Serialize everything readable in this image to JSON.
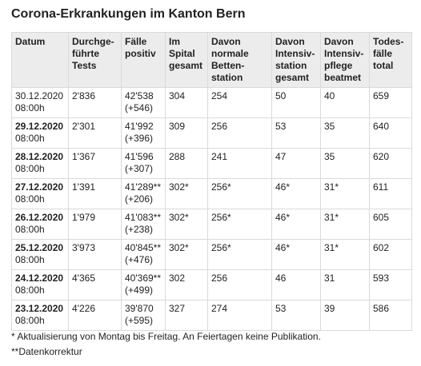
{
  "title": "Corona-Erkrankungen im Kanton Bern",
  "table": {
    "headers": [
      "Datum",
      "Durchge-\nführte\nTests",
      "Fälle\npositiv",
      "Im\nSpital\ngesamt",
      "Davon\nnormale\nBetten-\nstation",
      "Davon\nIntensiv-\nstation\ngesamt",
      "Davon\nIntensiv-\npflege\nbeatmet",
      "Todes-\nfälle\ntotal"
    ],
    "rows": [
      {
        "date": "30.12.2020",
        "time": "08:00h",
        "date_bold": false,
        "tests": "2'836",
        "positiv": "42'538\n(+546)",
        "spital": "304",
        "normal": "254",
        "intensiv": "50",
        "beatmet": "40",
        "todesfaelle": "659"
      },
      {
        "date": "29.12.2020",
        "time": "08:00h",
        "date_bold": true,
        "tests": "2'301",
        "positiv": "41'992\n(+396)",
        "spital": "309",
        "normal": "256",
        "intensiv": "53",
        "beatmet": "35",
        "todesfaelle": "640"
      },
      {
        "date": "28.12.2020",
        "time": "08:00h",
        "date_bold": true,
        "tests": "1'367",
        "positiv": "41'596\n(+307)",
        "spital": "288",
        "normal": "241",
        "intensiv": "47",
        "beatmet": "35",
        "todesfaelle": "620"
      },
      {
        "date": "27.12.2020",
        "time": "08:00h",
        "date_bold": true,
        "tests": "1'391",
        "positiv": "41'289**\n(+206)",
        "spital": "302*",
        "normal": "256*",
        "intensiv": "46*",
        "beatmet": "31*",
        "todesfaelle": "611"
      },
      {
        "date": "26.12.2020",
        "time": "08:00h",
        "date_bold": true,
        "tests": "1'979",
        "positiv": "41'083**\n(+238)",
        "spital": "302*",
        "normal": "256*",
        "intensiv": "46*",
        "beatmet": "31*",
        "todesfaelle": "605"
      },
      {
        "date": "25.12.2020",
        "time": "08:00h",
        "date_bold": true,
        "tests": "3'973",
        "positiv": "40'845**\n(+476)",
        "spital": "302*",
        "normal": "256*",
        "intensiv": "46*",
        "beatmet": "31*",
        "todesfaelle": "602"
      },
      {
        "date": "24.12.2020",
        "time": "08:00h",
        "date_bold": true,
        "tests": "4'365",
        "positiv": "40'369**\n(+499)",
        "spital": "302",
        "normal": "256",
        "intensiv": "46",
        "beatmet": "31",
        "todesfaelle": "593"
      },
      {
        "date": "23.12.2020",
        "time": "08:00h",
        "date_bold": true,
        "tests": "4'226",
        "positiv": "39'870\n(+595)",
        "spital": "327",
        "normal": "274",
        "intensiv": "53",
        "beatmet": "39",
        "todesfaelle": "586"
      }
    ]
  },
  "notes": [
    "* Aktualisierung von Montag bis Freitag. An Feiertagen keine Publikation.",
    "**Datenkorrektur"
  ]
}
